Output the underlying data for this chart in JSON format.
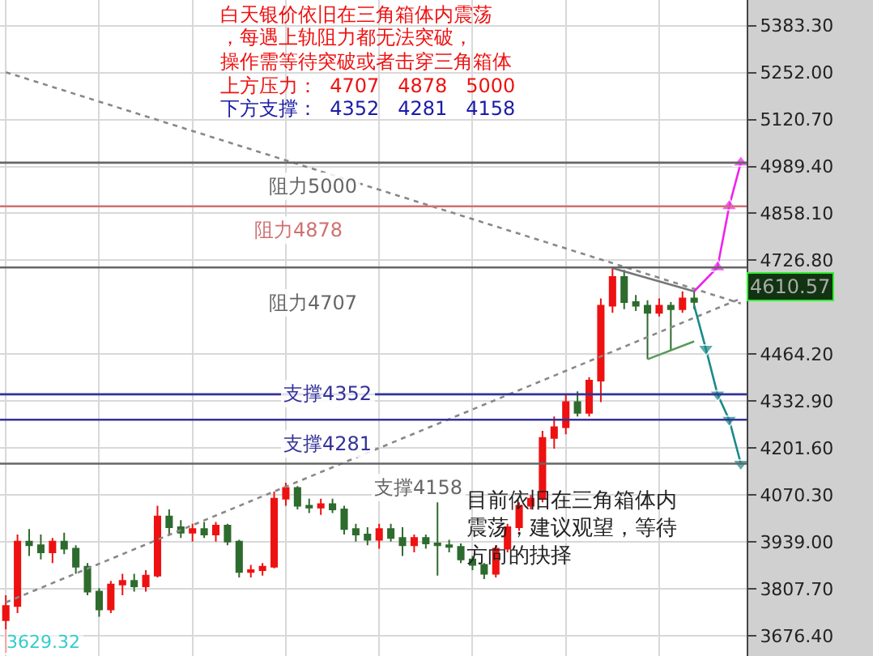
{
  "chart_data": {
    "type": "candlestick",
    "title": "白天银价依旧在三角箱体内震荡",
    "categories": [
      null,
      null,
      null,
      null,
      null,
      null,
      null,
      null,
      null,
      null,
      null,
      null,
      null,
      null,
      null,
      null,
      null,
      null,
      null,
      null,
      null,
      null,
      null,
      null,
      null,
      null,
      null,
      null,
      null,
      null,
      null,
      null,
      null,
      null,
      null,
      null,
      null,
      null,
      null,
      null,
      null,
      null,
      null,
      null,
      null,
      null,
      null,
      null,
      null,
      null,
      null,
      null,
      null,
      null,
      null,
      null,
      null,
      null,
      null,
      null,
      null,
      null,
      null,
      null
    ],
    "ohlc": [
      [
        3720,
        3790,
        3629.32,
        3760
      ],
      [
        3760,
        3960,
        3740,
        3940
      ],
      [
        3940,
        3975,
        3900,
        3930
      ],
      [
        3930,
        3960,
        3890,
        3910
      ],
      [
        3910,
        3950,
        3880,
        3940
      ],
      [
        3940,
        3965,
        3905,
        3920
      ],
      [
        3920,
        3930,
        3850,
        3870
      ],
      [
        3870,
        3880,
        3790,
        3800
      ],
      [
        3800,
        3810,
        3730,
        3750
      ],
      [
        3750,
        3830,
        3740,
        3820
      ],
      [
        3820,
        3850,
        3790,
        3830
      ],
      [
        3830,
        3850,
        3800,
        3815
      ],
      [
        3815,
        3860,
        3800,
        3845
      ],
      [
        3845,
        4040,
        3840,
        4010
      ],
      [
        4010,
        4030,
        3960,
        3980
      ],
      [
        3980,
        4000,
        3950,
        3965
      ],
      [
        3965,
        3990,
        3940,
        3975
      ],
      [
        3975,
        3995,
        3950,
        3960
      ],
      [
        3960,
        3995,
        3940,
        3985
      ],
      [
        3985,
        3990,
        3930,
        3940
      ],
      [
        3940,
        3945,
        3840,
        3855
      ],
      [
        3855,
        3875,
        3840,
        3860
      ],
      [
        3860,
        3880,
        3845,
        3870
      ],
      [
        3870,
        4080,
        3865,
        4060
      ],
      [
        4060,
        4105,
        4040,
        4090
      ],
      [
        4090,
        4095,
        4030,
        4040
      ],
      [
        4040,
        4060,
        4020,
        4035
      ],
      [
        4035,
        4060,
        4015,
        4045
      ],
      [
        4045,
        4060,
        4020,
        4030
      ],
      [
        4030,
        4040,
        3960,
        3975
      ],
      [
        3975,
        3990,
        3940,
        3960
      ],
      [
        3960,
        3980,
        3930,
        3945
      ],
      [
        3945,
        3990,
        3920,
        3975
      ],
      [
        3975,
        3990,
        3940,
        3950
      ],
      [
        3950,
        3980,
        3900,
        3930
      ],
      [
        3930,
        3960,
        3910,
        3950
      ],
      [
        3950,
        3960,
        3920,
        3935
      ],
      [
        3935,
        4050,
        3845,
        3930
      ],
      [
        3930,
        3945,
        3910,
        3925
      ],
      [
        3925,
        3935,
        3880,
        3890
      ],
      [
        3890,
        3900,
        3860,
        3875
      ],
      [
        3875,
        3880,
        3835,
        3850
      ],
      [
        3850,
        3930,
        3840,
        3920
      ],
      [
        3920,
        3990,
        3910,
        3980
      ],
      [
        3980,
        4050,
        3970,
        4040
      ],
      [
        4040,
        4070,
        4030,
        4060
      ],
      [
        4060,
        4250,
        4050,
        4230
      ],
      [
        4230,
        4290,
        4200,
        4260
      ],
      [
        4260,
        4350,
        4240,
        4330
      ],
      [
        4330,
        4360,
        4290,
        4300
      ],
      [
        4300,
        4400,
        4290,
        4390
      ],
      [
        4390,
        4620,
        4330,
        4600
      ],
      [
        4600,
        4705,
        4580,
        4680
      ],
      [
        4680,
        4700,
        4590,
        4610
      ],
      [
        4610,
        4630,
        4585,
        4600
      ],
      [
        4600,
        4615,
        4450,
        4580
      ],
      [
        4580,
        4620,
        4570,
        4600
      ],
      [
        4600,
        4610,
        4475,
        4590
      ],
      [
        4590,
        4640,
        4580,
        4620
      ],
      [
        4620,
        4640,
        4590,
        4610.57
      ],
      null,
      null,
      null,
      null
    ],
    "series": [
      {
        "type": "line",
        "color": "#888888",
        "line_style": "dotted",
        "values": [
          5253,
          null,
          null,
          null,
          null,
          null,
          null,
          null,
          null,
          null,
          null,
          null,
          null,
          null,
          null,
          null,
          null,
          null,
          null,
          null,
          null,
          null,
          null,
          null,
          null,
          null,
          null,
          null,
          null,
          null,
          null,
          null,
          null,
          null,
          null,
          null,
          null,
          null,
          null,
          null,
          null,
          null,
          null,
          null,
          null,
          null,
          null,
          null,
          null,
          null,
          null,
          null,
          null,
          null,
          null,
          null,
          null,
          null,
          null,
          null,
          null,
          null,
          null,
          4606
        ]
      },
      {
        "type": "line",
        "color": "#888888",
        "line_style": "dotted",
        "values": [
          3770,
          null,
          null,
          null,
          null,
          null,
          null,
          null,
          null,
          null,
          null,
          null,
          null,
          null,
          null,
          null,
          null,
          null,
          null,
          null,
          null,
          null,
          null,
          null,
          null,
          null,
          null,
          null,
          null,
          null,
          null,
          null,
          null,
          null,
          null,
          null,
          null,
          null,
          null,
          null,
          null,
          null,
          null,
          null,
          null,
          null,
          null,
          null,
          null,
          null,
          null,
          null,
          null,
          null,
          null,
          null,
          null,
          null,
          null,
          null,
          null,
          null,
          null,
          4620
        ]
      },
      {
        "type": "line",
        "color": "#777777",
        "line_style": "solid",
        "values": [
          null,
          null,
          null,
          null,
          null,
          null,
          null,
          null,
          null,
          null,
          null,
          null,
          null,
          null,
          null,
          null,
          null,
          null,
          null,
          null,
          null,
          null,
          null,
          null,
          null,
          null,
          null,
          null,
          null,
          null,
          null,
          null,
          null,
          null,
          null,
          null,
          null,
          null,
          null,
          null,
          null,
          null,
          null,
          null,
          null,
          null,
          null,
          null,
          null,
          null,
          null,
          null,
          4705,
          null,
          null,
          null,
          null,
          null,
          null,
          4640,
          null,
          null,
          null,
          null
        ]
      },
      {
        "type": "line",
        "color": "#5a9a5a",
        "line_style": "solid",
        "values": [
          null,
          null,
          null,
          null,
          null,
          null,
          null,
          null,
          null,
          null,
          null,
          null,
          null,
          null,
          null,
          null,
          null,
          null,
          null,
          null,
          null,
          null,
          null,
          null,
          null,
          null,
          null,
          null,
          null,
          null,
          null,
          null,
          null,
          null,
          null,
          null,
          null,
          null,
          null,
          null,
          null,
          null,
          null,
          null,
          null,
          null,
          null,
          null,
          null,
          null,
          null,
          null,
          null,
          null,
          null,
          4450,
          null,
          null,
          null,
          4500,
          null,
          null,
          null,
          null
        ]
      },
      {
        "type": "line",
        "color": "#ee22ee",
        "line_style": "solid",
        "marker": "triangle",
        "values": [
          null,
          null,
          null,
          null,
          null,
          null,
          null,
          null,
          null,
          null,
          null,
          null,
          null,
          null,
          null,
          null,
          null,
          null,
          null,
          null,
          null,
          null,
          null,
          null,
          null,
          null,
          null,
          null,
          null,
          null,
          null,
          null,
          null,
          null,
          null,
          null,
          null,
          null,
          null,
          null,
          null,
          null,
          null,
          null,
          null,
          null,
          null,
          null,
          null,
          null,
          null,
          null,
          null,
          null,
          null,
          null,
          null,
          null,
          null,
          4640,
          null,
          4707,
          4878,
          5000
        ]
      },
      {
        "type": "line",
        "color": "#1a8a8a",
        "line_style": "solid",
        "marker": "triangle",
        "values": [
          null,
          null,
          null,
          null,
          null,
          null,
          null,
          null,
          null,
          null,
          null,
          null,
          null,
          null,
          null,
          null,
          null,
          null,
          null,
          null,
          null,
          null,
          null,
          null,
          null,
          null,
          null,
          null,
          null,
          null,
          null,
          null,
          null,
          null,
          null,
          null,
          null,
          null,
          null,
          null,
          null,
          null,
          null,
          null,
          null,
          null,
          null,
          null,
          null,
          null,
          null,
          null,
          null,
          null,
          null,
          null,
          null,
          null,
          null,
          4600,
          4480,
          4352,
          4281,
          4158
        ]
      }
    ],
    "ylim": [
      3620,
      5455
    ],
    "yticks": [
      {
        "value": 3676.4,
        "label": "3676.40"
      },
      {
        "value": 3807.7,
        "label": "3807.70"
      },
      {
        "value": 3939.0,
        "label": "3939.00"
      },
      {
        "value": 4070.3,
        "label": "4070.30"
      },
      {
        "value": 4201.6,
        "label": "4201.60"
      },
      {
        "value": 4332.9,
        "label": "4332.90"
      },
      {
        "value": 4464.2,
        "label": "4464.20"
      },
      {
        "value": 4726.8,
        "label": "4726.80"
      },
      {
        "value": 4858.1,
        "label": "4858.10"
      },
      {
        "value": 4989.4,
        "label": "4989.40"
      },
      {
        "value": 5120.7,
        "label": "5120.70"
      },
      {
        "value": 5252.0,
        "label": "5252.00"
      },
      {
        "value": 5383.3,
        "label": "5383.30"
      }
    ],
    "ref_lines": [
      {
        "axis": "y",
        "value": 5000,
        "label": "阻力5000",
        "color": "#666666"
      },
      {
        "axis": "y",
        "value": 4878,
        "label": "阻力4878",
        "color": "#d07070"
      },
      {
        "axis": "y",
        "value": 4707,
        "label": "阻力4707",
        "color": "#666666"
      },
      {
        "axis": "y",
        "value": 4352,
        "label": "支撑4352",
        "color": "#333399"
      },
      {
        "axis": "y",
        "value": 4281,
        "label": "支撑4281",
        "color": "#333399"
      },
      {
        "axis": "y",
        "value": 4158,
        "label": "支撑4158",
        "color": "#666666"
      }
    ],
    "annotations": [
      "，每遇上轨阻力都无法突破，",
      "操作需等待突破或者击穿三角箱体",
      "上方压力：  4707   4878   5000",
      "下方支撑：  4352   4281   4158",
      "目前依旧在三角箱体内震荡，建议观望，等待方向的抉择",
      "3629.32",
      "4610.57"
    ],
    "grid": true,
    "tick_labels": "y"
  }
}
